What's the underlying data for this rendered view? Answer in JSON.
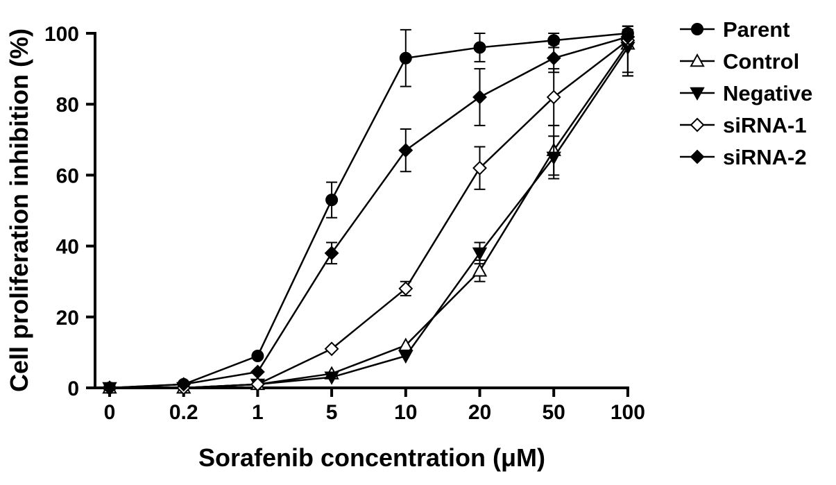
{
  "chart_data": {
    "type": "line",
    "xlabel": "Sorafenib concentration (μM)",
    "ylabel": "Cell proliferation inhibition (%)",
    "categories": [
      "0",
      "0.2",
      "1",
      "5",
      "10",
      "20",
      "50",
      "100"
    ],
    "ylim": [
      0,
      100
    ],
    "yticks": [
      0,
      20,
      40,
      60,
      80,
      100
    ],
    "grid": false,
    "legend_position": "top-right",
    "series": [
      {
        "name": "Parent",
        "marker": "circle-filled",
        "values": [
          0,
          1,
          9,
          53,
          93,
          96,
          98,
          100
        ],
        "errors": [
          0,
          0,
          0,
          5,
          8,
          4,
          2,
          1
        ]
      },
      {
        "name": "Control",
        "marker": "triangle-open",
        "values": [
          0,
          0,
          1,
          4,
          12,
          33,
          67,
          97
        ],
        "errors": [
          0,
          0,
          0,
          0,
          0,
          3,
          7,
          9
        ]
      },
      {
        "name": "Negative",
        "marker": "triangle-down-filled",
        "values": [
          0,
          0,
          1,
          3,
          9,
          38,
          65,
          96
        ],
        "errors": [
          0,
          0,
          0,
          0,
          0,
          3,
          6,
          8
        ]
      },
      {
        "name": "siRNA-1",
        "marker": "diamond-open",
        "values": [
          0,
          0,
          1,
          11,
          28,
          62,
          82,
          98
        ],
        "errors": [
          0,
          0,
          0,
          0,
          2,
          6,
          8,
          9
        ]
      },
      {
        "name": "siRNA-2",
        "marker": "diamond-filled",
        "values": [
          0,
          1,
          4.5,
          38,
          67,
          82,
          93,
          99
        ],
        "errors": [
          0,
          0,
          0,
          3,
          6,
          8,
          4,
          2
        ]
      }
    ]
  }
}
